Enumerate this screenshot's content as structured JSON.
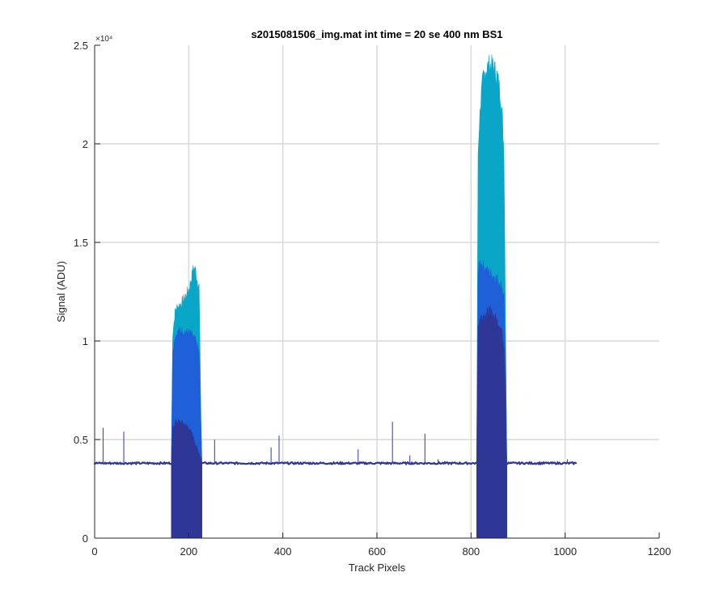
{
  "chart_data": {
    "type": "area",
    "title": "s2015081506_img.mat int time = 20 se  400 nm BS1",
    "xlabel": "Track Pixels",
    "ylabel": "Signal (ADU)",
    "xlim": [
      0,
      1200
    ],
    "ylim": [
      0,
      25000
    ],
    "xticks": [
      0,
      200,
      400,
      600,
      800,
      1000,
      1200
    ],
    "yticks": [
      0,
      5000,
      10000,
      15000,
      20000,
      25000
    ],
    "ytick_labels": [
      "0",
      "0.5",
      "1",
      "1.5",
      "2",
      "2.5"
    ],
    "y_exponent_label": "×10⁴",
    "grid": true,
    "baseline": 3800,
    "x_range": [
      0,
      1024
    ],
    "series": [
      {
        "color": "#0aa6c8",
        "peaks": [
          {
            "x": [
              163,
              166,
              172,
              180,
              190,
              200,
              206,
              210,
              214,
              218,
              222,
              226,
              228
            ],
            "y": [
              3800,
              10400,
              11600,
              11800,
              12100,
              12600,
              13200,
              13700,
              13600,
              13100,
              12800,
              6000,
              3800
            ]
          },
          {
            "x": [
              812,
              815,
              818,
              822,
              826,
              832,
              840,
              848,
              856,
              862,
              866,
              870,
              874,
              876
            ],
            "y": [
              3800,
              19500,
              21200,
              22500,
              23300,
              23800,
              24000,
              23900,
              23400,
              22600,
              21500,
              19600,
              9000,
              3800
            ]
          }
        ]
      },
      {
        "color": "#1f5fd8",
        "peaks": [
          {
            "x": [
              163,
              166,
              172,
              180,
              190,
              200,
              206,
              210,
              214,
              218,
              222,
              226,
              228
            ],
            "y": [
              3800,
              9600,
              10300,
              10500,
              10500,
              10400,
              10300,
              10200,
              10000,
              9700,
              9400,
              5600,
              3800
            ]
          },
          {
            "x": [
              812,
              815,
              820,
              826,
              832,
              840,
              848,
              856,
              862,
              866,
              870,
              874,
              876
            ],
            "y": [
              3800,
              13500,
              14000,
              13800,
              13600,
              13400,
              13300,
              13100,
              12900,
              12700,
              12300,
              8000,
              3800
            ]
          }
        ]
      },
      {
        "color": "#2e3796",
        "peaks": [
          {
            "x": [
              163,
              166,
              172,
              180,
              190,
              200,
              206,
              210,
              214,
              218,
              222,
              226,
              228
            ],
            "y": [
              3800,
              5600,
              5900,
              5900,
              5800,
              5600,
              5300,
              5100,
              4800,
              4500,
              4300,
              4000,
              3800
            ]
          },
          {
            "x": [
              812,
              815,
              820,
              826,
              832,
              840,
              848,
              856,
              862,
              866,
              870,
              874,
              876
            ],
            "y": [
              3800,
              10800,
              11200,
              11300,
              11400,
              11500,
              11300,
              11000,
              10800,
              10400,
              9800,
              6000,
              3800
            ]
          }
        ]
      }
    ],
    "spikes": [
      {
        "x": 18,
        "y": 5600
      },
      {
        "x": 62,
        "y": 5400
      },
      {
        "x": 255,
        "y": 5000
      },
      {
        "x": 375,
        "y": 4600
      },
      {
        "x": 392,
        "y": 5200
      },
      {
        "x": 560,
        "y": 4500
      },
      {
        "x": 633,
        "y": 5900
      },
      {
        "x": 670,
        "y": 4200
      },
      {
        "x": 702,
        "y": 5300
      },
      {
        "x": 730,
        "y": 4000
      },
      {
        "x": 1005,
        "y": 4000
      }
    ]
  }
}
